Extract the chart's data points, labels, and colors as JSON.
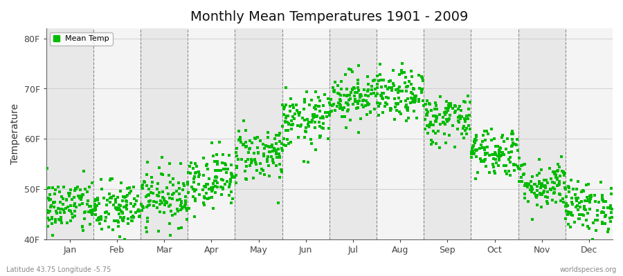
{
  "title": "Monthly Mean Temperatures 1901 - 2009",
  "ylabel": "Temperature",
  "xlabel_bottom_left": "Latitude 43.75 Longitude -5.75",
  "xlabel_bottom_right": "worldspecies.org",
  "yticks": [
    40,
    50,
    60,
    70,
    80
  ],
  "ytick_labels": [
    "40F",
    "50F",
    "60F",
    "70F",
    "80F"
  ],
  "ylim": [
    40,
    82
  ],
  "months": [
    "Jan",
    "Feb",
    "Mar",
    "Apr",
    "May",
    "Jun",
    "Jul",
    "Aug",
    "Sep",
    "Oct",
    "Nov",
    "Dec"
  ],
  "dot_color": "#00bb00",
  "dot_size": 8,
  "background_color": "#ffffff",
  "plot_bg_color": "#ffffff",
  "grid_color": "#888888",
  "title_fontsize": 14,
  "legend_label": "Mean Temp",
  "n_years": 109,
  "seed": 42,
  "monthly_means_F": [
    46.5,
    46.0,
    48.5,
    52.0,
    57.0,
    63.5,
    68.5,
    68.5,
    64.0,
    57.5,
    51.0,
    46.5
  ],
  "monthly_stds_F": [
    2.8,
    2.8,
    2.8,
    2.8,
    2.8,
    2.8,
    2.5,
    2.5,
    2.5,
    2.5,
    2.5,
    2.5
  ],
  "band_color_dark": "#e8e8e8",
  "band_color_light": "#f4f4f4"
}
